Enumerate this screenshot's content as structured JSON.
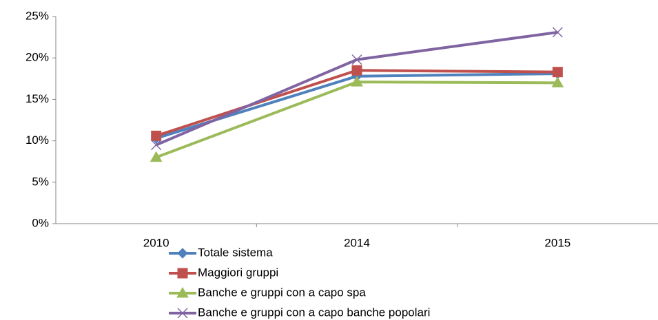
{
  "chart_data": {
    "type": "line",
    "categories": [
      "2010",
      "2014",
      "2015"
    ],
    "series": [
      {
        "name": "Totale sistema",
        "color": "#4f81bd",
        "marker": "diamond",
        "values": [
          10.3,
          17.8,
          18.1
        ]
      },
      {
        "name": "Maggiori gruppi",
        "color": "#c0504d",
        "marker": "square",
        "values": [
          10.6,
          18.5,
          18.3
        ]
      },
      {
        "name": "Banche e gruppi con a capo spa",
        "color": "#9bbb59",
        "marker": "triangle",
        "values": [
          8.0,
          17.1,
          17.0
        ]
      },
      {
        "name": "Banche e gruppi con a capo banche popolari",
        "color": "#8064a2",
        "marker": "x",
        "values": [
          9.5,
          19.8,
          23.1
        ]
      }
    ],
    "ylim": [
      0,
      25
    ],
    "yticks": [
      {
        "value": 0,
        "label": "0%"
      },
      {
        "value": 5,
        "label": "5%"
      },
      {
        "value": 10,
        "label": "10%"
      },
      {
        "value": 15,
        "label": "15%"
      },
      {
        "value": 20,
        "label": "20%"
      },
      {
        "value": 25,
        "label": "25%"
      }
    ],
    "grid": false,
    "legend": "bottom"
  }
}
